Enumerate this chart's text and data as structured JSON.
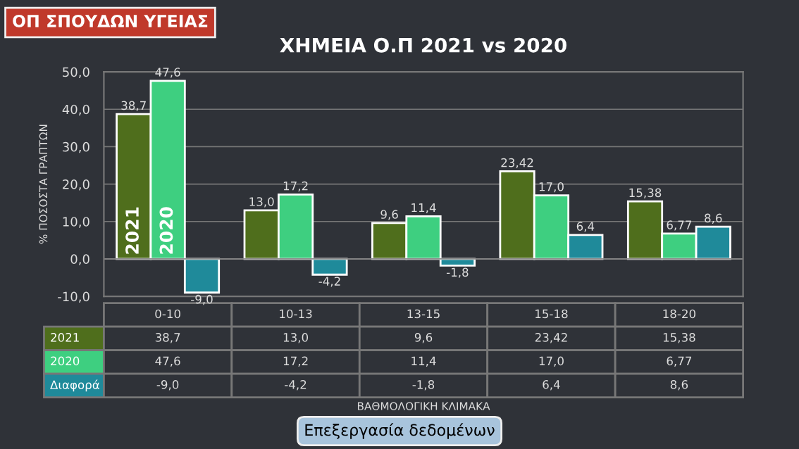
{
  "chart_data": {
    "type": "bar",
    "title": "ΧΗΜΕΙΑ Ο.Π 2021 vs 2020",
    "ylabel": "% ΠΟΣΟΣΤΑ ΓΡΑΠΤΩΝ",
    "categories": [
      "0-10",
      "10-13",
      "13-15",
      "15-18",
      "18-20"
    ],
    "series": [
      {
        "name": "2021",
        "color": "#4f6e1c",
        "values": [
          38.7,
          13.0,
          9.6,
          23.42,
          15.38
        ],
        "value_labels": [
          "38,7",
          "13,0",
          "9,6",
          "23,42",
          "15,38"
        ]
      },
      {
        "name": "2020",
        "color": "#3ecf80",
        "values": [
          47.6,
          17.2,
          11.4,
          17.0,
          6.77
        ],
        "value_labels": [
          "47,6",
          "17,2",
          "11,4",
          "17,0",
          "6,77"
        ]
      },
      {
        "name": "Διαφορά",
        "color": "#1f8a9a",
        "values": [
          -9.0,
          -4.2,
          -1.8,
          6.4,
          8.6
        ],
        "value_labels": [
          "-9,0",
          "-4,2",
          "-1,8",
          "6,4",
          "8,6"
        ]
      }
    ],
    "ylim": [
      -10,
      50
    ],
    "yticks": [
      {
        "value": -10,
        "label": "-10,0"
      },
      {
        "value": 0,
        "label": "0,0"
      },
      {
        "value": 10,
        "label": "10,0"
      },
      {
        "value": 20,
        "label": "20,0"
      },
      {
        "value": 30,
        "label": "30,0"
      },
      {
        "value": 40,
        "label": "40,0"
      },
      {
        "value": 50,
        "label": "50,0"
      }
    ],
    "grid": "y",
    "annotations": [
      "ΟΠ ΣΠΟΥΔΩΝ ΥΓΕΙΑΣ",
      "Επεξεργασία δεδομένων",
      "2021",
      "2020",
      "ΒΑΘΜΟΛΟΓΙΚΗ ΚΛΙΜΑΚΑ"
    ]
  }
}
